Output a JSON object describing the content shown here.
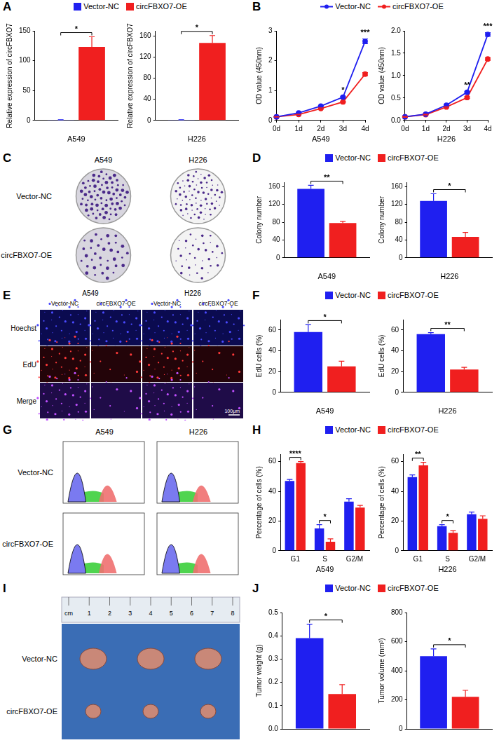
{
  "chart_data": [
    {
      "panel": "A",
      "type": "bar",
      "categories": [
        null
      ],
      "x_label": "A549",
      "y_label": "Relative expression of circFBXO7",
      "series": [
        {
          "name": "Vector-NC",
          "color": "#1f1ff0",
          "values": [
            1
          ],
          "errors": [
            0.2
          ]
        },
        {
          "name": "circFBXO7-OE",
          "color": "#f01f1f",
          "values": [
            123
          ],
          "errors": [
            17
          ]
        }
      ],
      "significance": [
        "*"
      ],
      "ylim": [
        0,
        150
      ],
      "yticks": [
        0,
        50,
        100,
        150
      ],
      "grid": false
    },
    {
      "panel": "A",
      "type": "bar",
      "categories": [
        null
      ],
      "x_label": "H226",
      "y_label": "Relative expression of circFBXO7",
      "series": [
        {
          "name": "Vector-NC",
          "color": "#1f1ff0",
          "values": [
            1
          ],
          "errors": [
            0.2
          ]
        },
        {
          "name": "circFBXO7-OE",
          "color": "#f01f1f",
          "values": [
            147
          ],
          "errors": [
            14
          ]
        }
      ],
      "significance": [
        "*"
      ],
      "ylim": [
        0,
        170
      ],
      "yticks": [
        0,
        40,
        80,
        120,
        160
      ],
      "grid": false
    },
    {
      "panel": "B",
      "type": "line",
      "categories": [
        "0d",
        "1d",
        "2d",
        "3d",
        "4d"
      ],
      "x_label": "A549",
      "y_label": "OD value (450nm)",
      "series": [
        {
          "name": "Vector-NC",
          "color": "#1f1ff0",
          "marker": "circle",
          "values": [
            0.12,
            0.25,
            0.48,
            0.78,
            2.65
          ],
          "errors": [
            0.01,
            0.02,
            0.02,
            0.03,
            0.08
          ]
        },
        {
          "name": "circFBXO7-OE",
          "color": "#f01f1f",
          "marker": "circle",
          "values": [
            0.12,
            0.2,
            0.4,
            0.62,
            1.55
          ],
          "errors": [
            0.01,
            0.01,
            0.02,
            0.02,
            0.05
          ]
        }
      ],
      "significance": [
        null,
        null,
        null,
        "*",
        "***"
      ],
      "ylim": [
        0,
        3
      ],
      "yticks": [
        0,
        1,
        2,
        3
      ],
      "grid": false
    },
    {
      "panel": "B",
      "type": "line",
      "categories": [
        "0d",
        "1d",
        "2d",
        "3d",
        "4d"
      ],
      "x_label": "H226",
      "y_label": "OD value (450nm)",
      "series": [
        {
          "name": "Vector-NC",
          "color": "#1f1ff0",
          "marker": "circle",
          "values": [
            0.08,
            0.14,
            0.34,
            0.63,
            1.92
          ],
          "errors": [
            0.01,
            0.01,
            0.02,
            0.02,
            0.04
          ]
        },
        {
          "name": "circFBXO7-OE",
          "color": "#f01f1f",
          "marker": "circle",
          "values": [
            0.08,
            0.13,
            0.3,
            0.51,
            1.37
          ],
          "errors": [
            0.01,
            0.01,
            0.01,
            0.02,
            0.03
          ]
        }
      ],
      "significance": [
        null,
        null,
        null,
        "**",
        "***"
      ],
      "ylim": [
        0,
        2
      ],
      "yticks": [
        {
          "value": 0,
          "label": "0.0"
        },
        {
          "value": 0.5,
          "label": "0.5"
        },
        {
          "value": 1,
          "label": "1.0"
        },
        {
          "value": 1.5,
          "label": "1.5"
        },
        {
          "value": 2,
          "label": "2.0"
        }
      ],
      "grid": false
    },
    {
      "panel": "D",
      "type": "bar",
      "categories": [
        null
      ],
      "x_label": "A549",
      "y_label": "Colony number",
      "series": [
        {
          "name": "Vector-NC",
          "color": "#1f1ff0",
          "values": [
            155
          ],
          "errors": [
            8
          ]
        },
        {
          "name": "circFBXO7-OE",
          "color": "#f01f1f",
          "values": [
            78
          ],
          "errors": [
            4
          ]
        }
      ],
      "significance": [
        "**"
      ],
      "ylim": [
        0,
        170
      ],
      "yticks": [
        0,
        40,
        80,
        120,
        160
      ],
      "grid": false
    },
    {
      "panel": "D",
      "type": "bar",
      "categories": [
        null
      ],
      "x_label": "H226",
      "y_label": "Colony number",
      "series": [
        {
          "name": "Vector-NC",
          "color": "#1f1ff0",
          "values": [
            128
          ],
          "errors": [
            16
          ]
        },
        {
          "name": "circFBXO7-OE",
          "color": "#f01f1f",
          "values": [
            47
          ],
          "errors": [
            10
          ]
        }
      ],
      "significance": [
        "*"
      ],
      "ylim": [
        0,
        170
      ],
      "yticks": [
        0,
        40,
        80,
        120,
        160
      ],
      "grid": false
    },
    {
      "panel": "F",
      "type": "bar",
      "categories": [
        null
      ],
      "x_label": "A549",
      "y_label": "EdU cells (%)",
      "series": [
        {
          "name": "Vector-NC",
          "color": "#1f1ff0",
          "values": [
            58
          ],
          "errors": [
            7
          ]
        },
        {
          "name": "circFBXO7-OE",
          "color": "#f01f1f",
          "values": [
            25
          ],
          "errors": [
            5
          ]
        }
      ],
      "significance": [
        "*"
      ],
      "ylim": [
        0,
        70
      ],
      "yticks": [
        0,
        20,
        40,
        60
      ],
      "grid": false
    },
    {
      "panel": "F",
      "type": "bar",
      "categories": [
        null
      ],
      "x_label": "H226",
      "y_label": "EdU cells (%)",
      "series": [
        {
          "name": "Vector-NC",
          "color": "#1f1ff0",
          "values": [
            56
          ],
          "errors": [
            1.5
          ]
        },
        {
          "name": "circFBXO7-OE",
          "color": "#f01f1f",
          "values": [
            22
          ],
          "errors": [
            2
          ]
        }
      ],
      "significance": [
        "**"
      ],
      "ylim": [
        0,
        70
      ],
      "yticks": [
        0,
        20,
        40,
        60
      ],
      "grid": false
    },
    {
      "panel": "H",
      "type": "bar",
      "categories": [
        "G1",
        "S",
        "G2/M"
      ],
      "x_label": "A549",
      "y_label": "Percentage of cells (%)",
      "series": [
        {
          "name": "Vector-NC",
          "color": "#1f1ff0",
          "values": [
            47,
            15,
            33
          ],
          "errors": [
            1,
            2.5,
            2
          ]
        },
        {
          "name": "circFBXO7-OE",
          "color": "#f01f1f",
          "values": [
            59,
            6,
            29
          ],
          "errors": [
            1,
            2,
            1.5
          ]
        }
      ],
      "significance": [
        "****",
        "*",
        null
      ],
      "ylim": [
        0,
        65
      ],
      "yticks": [
        0,
        20,
        40,
        60
      ],
      "grid": false
    },
    {
      "panel": "H",
      "type": "bar",
      "categories": [
        "G1",
        "S",
        "G2/M"
      ],
      "x_label": "H226",
      "y_label": "Percentage of cells (%)",
      "series": [
        {
          "name": "Vector-NC",
          "color": "#1f1ff0",
          "values": [
            49.5,
            16.5,
            24.5
          ],
          "errors": [
            1.5,
            1,
            1.5
          ]
        },
        {
          "name": "circFBXO7-OE",
          "color": "#f01f1f",
          "values": [
            57.5,
            12,
            21.5
          ],
          "errors": [
            2,
            1.5,
            2
          ]
        }
      ],
      "significance": [
        "**",
        "*",
        null
      ],
      "ylim": [
        0,
        65
      ],
      "yticks": [
        0,
        20,
        40,
        60
      ],
      "grid": false
    },
    {
      "panel": "J",
      "type": "bar",
      "categories": [
        null
      ],
      "x_label": null,
      "y_label": "Tumor weight (g)",
      "series": [
        {
          "name": "Vector-NC",
          "color": "#1f1ff0",
          "values": [
            0.39
          ],
          "errors": [
            0.06
          ]
        },
        {
          "name": "circFBXO7-OE",
          "color": "#f01f1f",
          "values": [
            0.15
          ],
          "errors": [
            0.04
          ]
        }
      ],
      "significance": [
        "*"
      ],
      "ylim": [
        0,
        0.5
      ],
      "yticks": [
        {
          "value": 0,
          "label": "0.0"
        },
        {
          "value": 0.1,
          "label": "0.1"
        },
        {
          "value": 0.2,
          "label": "0.2"
        },
        {
          "value": 0.3,
          "label": "0.3"
        },
        {
          "value": 0.4,
          "label": "0.4"
        },
        {
          "value": 0.5,
          "label": "0.5"
        }
      ],
      "grid": false
    },
    {
      "panel": "J",
      "type": "bar",
      "categories": [
        null
      ],
      "x_label": null,
      "y_label": "Tumor volume (mm³)",
      "series": [
        {
          "name": "Vector-NC",
          "color": "#1f1ff0",
          "values": [
            500
          ],
          "errors": [
            50
          ]
        },
        {
          "name": "circFBXO7-OE",
          "color": "#f01f1f",
          "values": [
            220
          ],
          "errors": [
            45
          ]
        }
      ],
      "significance": [
        "*"
      ],
      "ylim": [
        0,
        800
      ],
      "yticks": [
        0,
        200,
        400,
        600,
        800
      ],
      "grid": false
    }
  ],
  "image_panels": [
    {
      "panel": "C",
      "type": "plates",
      "columns": [
        "A549",
        "H226"
      ],
      "rows": [
        "Vector-NC",
        "circFBXO7-OE"
      ]
    },
    {
      "panel": "E",
      "type": "micrographs",
      "columns": [
        "A549",
        "H226"
      ],
      "subcolumns": [
        "Vector-NC",
        "circFBXO7-OE",
        "Vector-NC",
        "circFBXO7-OE"
      ],
      "rows": [
        "Hoechst",
        "EdU",
        "Merge"
      ],
      "scale_bar": "100μm"
    },
    {
      "panel": "G",
      "type": "histograms",
      "columns": [
        "A549",
        "H226"
      ],
      "rows": [
        "Vector-NC",
        "circFBXO7-OE"
      ]
    },
    {
      "panel": "I",
      "type": "photo",
      "ruler": [
        "cm",
        "1",
        "2",
        "3",
        "4",
        "5",
        "6",
        "7",
        "8"
      ],
      "rows": [
        "Vector-NC",
        "circFBXO7-OE"
      ]
    }
  ]
}
